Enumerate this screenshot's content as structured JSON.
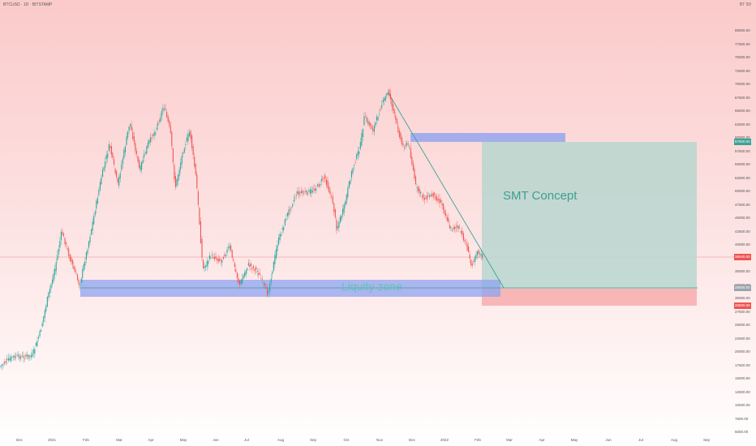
{
  "header": {
    "symbol_line": "BTCUSD · 1D · BITSTAMP"
  },
  "corner_label": "BT 5D",
  "price_axis": {
    "labels": [
      "80000.00",
      "77500.00",
      "75000.00",
      "72500.00",
      "70000.00",
      "67500.00",
      "65000.00",
      "62500.00",
      "60000.00",
      "57500.00",
      "55000.00",
      "52500.00",
      "50000.00",
      "47500.00",
      "45000.00",
      "42500.00",
      "40000.00",
      "37500.00",
      "35000.00",
      "32500.00",
      "30000.00",
      "27500.00",
      "25000.00",
      "22500.00",
      "20000.00",
      "17500.00",
      "15000.00",
      "12500.00",
      "10000.00",
      "7500.00",
      "5000.00"
    ]
  },
  "price_tags": {
    "upper": "57500.00",
    "current": "36540.00",
    "mid": "29000.00",
    "lower": "26500.00"
  },
  "time_axis": {
    "labels": [
      "Dec",
      "2021",
      "Feb",
      "Mar",
      "Apr",
      "May",
      "Jun",
      "Jul",
      "Aug",
      "Sep",
      "Oct",
      "Nov",
      "Dec",
      "2022",
      "Feb",
      "Mar",
      "Apr",
      "May",
      "Jun",
      "Jul",
      "Aug",
      "Sep"
    ]
  },
  "annotations": {
    "smt": "SMT Concept",
    "liquidity": "Liquity zone"
  },
  "colors": {
    "up": "#26a69a",
    "down": "#ef5350",
    "zone_blue": "#8fa3f0",
    "smt_box": "#b9d6cf",
    "red_box": "#f7b0b0",
    "trend": "#3aa294"
  }
}
